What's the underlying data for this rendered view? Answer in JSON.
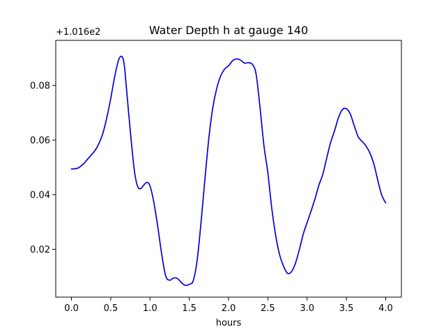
{
  "chart_data": {
    "type": "line",
    "title": "Water Depth h at gauge 140",
    "xlabel": "hours",
    "ylabel": "",
    "y_offset_label": "+1.016e2",
    "xlim": [
      -0.2,
      4.2
    ],
    "ylim": [
      0.0025,
      0.0965
    ],
    "x_ticks": [
      0.0,
      0.5,
      1.0,
      1.5,
      2.0,
      2.5,
      3.0,
      3.5,
      4.0
    ],
    "x_tick_labels": [
      "0.0",
      "0.5",
      "1.0",
      "1.5",
      "2.0",
      "2.5",
      "3.0",
      "3.5",
      "4.0"
    ],
    "y_ticks": [
      0.02,
      0.04,
      0.06,
      0.08
    ],
    "y_tick_labels": [
      "0.02",
      "0.04",
      "0.06",
      "0.08"
    ],
    "grid": false,
    "series": [
      {
        "color": "#0000dd",
        "x": [
          0.0,
          0.08,
          0.15,
          0.2,
          0.3,
          0.35,
          0.4,
          0.45,
          0.5,
          0.55,
          0.6,
          0.64,
          0.67,
          0.7,
          0.75,
          0.8,
          0.84,
          0.88,
          0.92,
          0.96,
          1.0,
          1.05,
          1.1,
          1.15,
          1.2,
          1.25,
          1.3,
          1.35,
          1.4,
          1.45,
          1.5,
          1.55,
          1.6,
          1.65,
          1.7,
          1.75,
          1.8,
          1.85,
          1.9,
          1.95,
          2.0,
          2.05,
          2.1,
          2.15,
          2.2,
          2.25,
          2.3,
          2.35,
          2.4,
          2.45,
          2.5,
          2.55,
          2.6,
          2.65,
          2.7,
          2.75,
          2.8,
          2.85,
          2.9,
          2.95,
          3.0,
          3.05,
          3.1,
          3.15,
          3.2,
          3.25,
          3.3,
          3.35,
          3.4,
          3.45,
          3.5,
          3.55,
          3.6,
          3.65,
          3.7,
          3.75,
          3.8,
          3.85,
          3.9,
          3.95,
          4.0
        ],
        "y": [
          0.0494,
          0.0497,
          0.0512,
          0.0528,
          0.0562,
          0.0588,
          0.0625,
          0.0682,
          0.0752,
          0.0832,
          0.0893,
          0.0906,
          0.088,
          0.079,
          0.063,
          0.049,
          0.0432,
          0.0422,
          0.0435,
          0.0445,
          0.0432,
          0.037,
          0.028,
          0.018,
          0.0102,
          0.0087,
          0.0095,
          0.0093,
          0.0078,
          0.0068,
          0.0072,
          0.0085,
          0.016,
          0.03,
          0.046,
          0.061,
          0.072,
          0.079,
          0.0835,
          0.086,
          0.0872,
          0.089,
          0.0897,
          0.0893,
          0.0882,
          0.0883,
          0.0878,
          0.0842,
          0.072,
          0.058,
          0.048,
          0.035,
          0.025,
          0.018,
          0.0138,
          0.0112,
          0.0118,
          0.0148,
          0.0198,
          0.0255,
          0.0298,
          0.034,
          0.0385,
          0.0435,
          0.0475,
          0.0535,
          0.0592,
          0.0635,
          0.0683,
          0.0712,
          0.0715,
          0.0695,
          0.0652,
          0.0612,
          0.0595,
          0.0578,
          0.0552,
          0.0512,
          0.0452,
          0.0398,
          0.037
        ]
      }
    ]
  }
}
